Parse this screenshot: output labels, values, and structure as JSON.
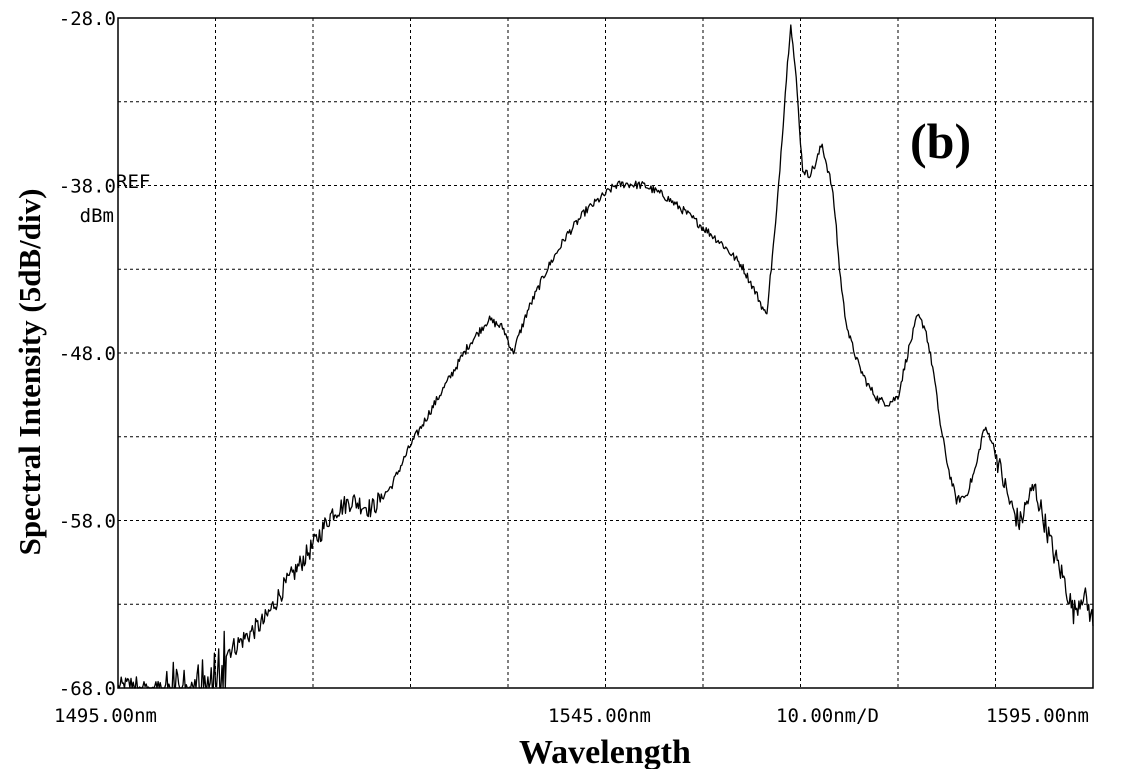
{
  "chart_data": {
    "type": "line",
    "title": "",
    "panel_label": "(b)",
    "xlabel": "Wavelength",
    "ylabel": "Spectral Intensity (5dB/div)",
    "xlim": [
      1495.0,
      1595.0
    ],
    "ylim": [
      -68.0,
      -28.0
    ],
    "x_unit": "nm",
    "y_unit": "dBm",
    "grid": true,
    "x_tick_labels": {
      "left": "1495.00nm",
      "center": "1545.00nm",
      "span": "10.00nm/D",
      "right": "1595.00nm"
    },
    "y_tick_labels": [
      "-28.0",
      "-38.0",
      "-48.0",
      "-58.0",
      "-68.0"
    ],
    "y_tick_values": [
      -28.0,
      -38.0,
      -48.0,
      -58.0,
      -68.0
    ],
    "ref_label": "REF",
    "ref_unit": "dBm",
    "series": [
      {
        "x": [
          1495.0,
          1498.0,
          1501.0,
          1504.0,
          1507.0,
          1510.0,
          1512.0,
          1515.0,
          1517.0,
          1519.0,
          1521.0,
          1523.0,
          1525.0,
          1527.0,
          1529.0,
          1531.0,
          1533.0,
          1534.5,
          1535.5,
          1537.0,
          1539.0,
          1541.0,
          1543.0,
          1545.0,
          1546.0,
          1547.0,
          1549.0,
          1551.0,
          1553.0,
          1555.0,
          1557.0,
          1559.0,
          1560.5,
          1561.5,
          1562.5,
          1563.5,
          1564.0,
          1564.6,
          1565.2,
          1565.8,
          1566.5,
          1567.2,
          1567.7,
          1568.2,
          1568.6,
          1569.0,
          1569.5,
          1570.0,
          1571.0,
          1572.0,
          1573.0,
          1574.0,
          1575.0,
          1576.0,
          1577.0,
          1577.8,
          1578.6,
          1579.4,
          1580.2,
          1581.0,
          1582.0,
          1583.0,
          1583.8,
          1584.5,
          1585.5,
          1586.5,
          1587.5,
          1588.3,
          1589.0,
          1590.0,
          1591.0,
          1592.0,
          1593.0,
          1594.0,
          1595.0
        ],
        "y": [
          -68.0,
          -67.5,
          -67.0,
          -66.5,
          -65.5,
          -64.0,
          -62.0,
          -59.5,
          -57.5,
          -56.8,
          -57.3,
          -56.0,
          -53.5,
          -51.5,
          -49.5,
          -47.5,
          -46.0,
          -46.5,
          -48.0,
          -45.5,
          -43.0,
          -41.0,
          -39.5,
          -38.5,
          -38.0,
          -37.9,
          -38.0,
          -38.6,
          -39.5,
          -40.5,
          -41.5,
          -42.8,
          -44.5,
          -45.8,
          -40.0,
          -32.0,
          -28.2,
          -32.0,
          -37.0,
          -37.4,
          -36.8,
          -35.5,
          -36.8,
          -38.0,
          -40.0,
          -43.0,
          -45.5,
          -47.0,
          -48.8,
          -50.0,
          -50.8,
          -51.0,
          -50.6,
          -48.0,
          -45.8,
          -46.5,
          -49.0,
          -52.5,
          -55.0,
          -56.8,
          -56.5,
          -54.8,
          -52.5,
          -53.0,
          -55.0,
          -57.0,
          -58.2,
          -56.8,
          -56.0,
          -58.0,
          -60.0,
          -61.5,
          -63.5,
          -62.3,
          -64.0
        ],
        "noisy_region_x": [
          1497.0,
          1506.0
        ]
      }
    ]
  }
}
